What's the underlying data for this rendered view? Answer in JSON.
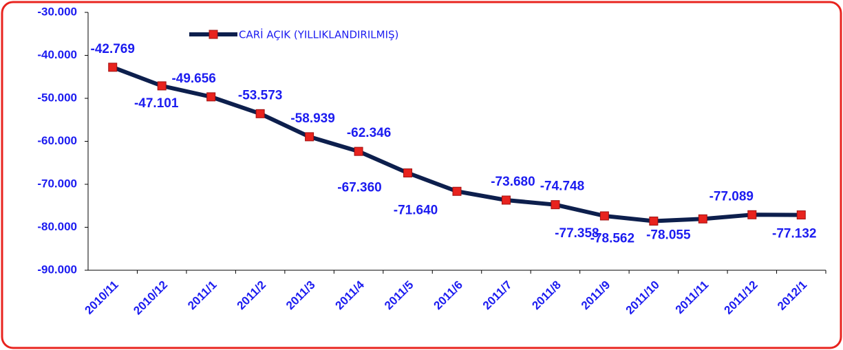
{
  "chart_data": {
    "type": "line",
    "categories": [
      "2010/11",
      "2010/12",
      "2011/1",
      "2011/2",
      "2011/3",
      "2011/4",
      "2011/5",
      "2011/6",
      "2011/7",
      "2011/8",
      "2011/9",
      "2011/10",
      "2011/11",
      "2011/12",
      "2012/1"
    ],
    "series": [
      {
        "name": "CARİ AÇIK (YILLIKLANDIRILMIŞ)",
        "color": "#0d1f4d",
        "marker_color": "#e8231e",
        "values": [
          -42769,
          -47101,
          -49656,
          -53573,
          -58939,
          -62346,
          -67360,
          -71640,
          -73680,
          -74748,
          -77358,
          -78562,
          -78055,
          -77089,
          -77132
        ],
        "value_labels": [
          "-42.769",
          "-47.101",
          "-49.656",
          "-53.573",
          "-58.939",
          "-62.346",
          "-67.360",
          "-71.640",
          "-73.680",
          "-74.748",
          "-77.358",
          "-78.562",
          "-78.055",
          "-77.089",
          "-77.132"
        ]
      }
    ],
    "ylim": [
      -90000,
      -30000
    ],
    "yticks": [
      {
        "value": -30000,
        "label": "-30.000"
      },
      {
        "value": -40000,
        "label": "-40.000"
      },
      {
        "value": -50000,
        "label": "-50.000"
      },
      {
        "value": -60000,
        "label": "-60.000"
      },
      {
        "value": -70000,
        "label": "-70.000"
      },
      {
        "value": -80000,
        "label": "-80.000"
      },
      {
        "value": -90000,
        "label": "-90.000"
      }
    ],
    "legend": "top-left",
    "grid": false
  }
}
